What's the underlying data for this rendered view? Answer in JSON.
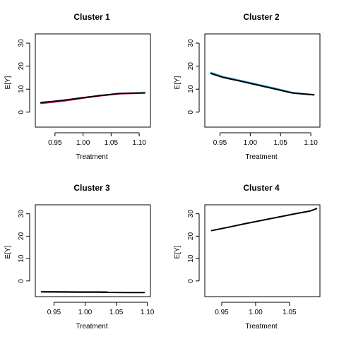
{
  "chart_data": [
    {
      "type": "line",
      "title": "Cluster 1",
      "xlabel": "Treatment",
      "ylabel": "E[Y]",
      "xlim": [
        0.915,
        1.12
      ],
      "ylim": [
        -6.5,
        34
      ],
      "xticks": [
        0.95,
        1.0,
        1.05,
        1.1
      ],
      "xtick_labels": [
        "0.95",
        "1.00",
        "1.05",
        "1.10"
      ],
      "yticks": [
        0,
        10,
        20,
        30
      ],
      "ytick_labels": [
        "0",
        "10",
        "20",
        "30"
      ],
      "grid": false,
      "series": [
        {
          "color": "#e0007a",
          "x": [
            0.925,
            0.945,
            0.97,
            1.0,
            1.03,
            1.065,
            1.11
          ],
          "y": [
            3.8,
            4.3,
            5.0,
            6.1,
            7.1,
            8.0,
            8.3
          ]
        },
        {
          "color": "#000000",
          "x": [
            0.925,
            0.945,
            0.97,
            1.0,
            1.03,
            1.065,
            1.11
          ],
          "y": [
            4.2,
            4.6,
            5.3,
            6.3,
            7.2,
            8.1,
            8.4
          ]
        }
      ]
    },
    {
      "type": "line",
      "title": "Cluster 2",
      "xlabel": "Treatment",
      "ylabel": "E[Y]",
      "xlim": [
        0.925,
        1.115
      ],
      "ylim": [
        -6.5,
        34
      ],
      "xticks": [
        0.95,
        1.0,
        1.05,
        1.1
      ],
      "xtick_labels": [
        "0.95",
        "1.00",
        "1.05",
        "1.10"
      ],
      "yticks": [
        0,
        10,
        20,
        30
      ],
      "ytick_labels": [
        "0",
        "10",
        "20",
        "30"
      ],
      "grid": false,
      "series": [
        {
          "color": "#2a9fd6",
          "x": [
            0.935,
            0.955,
            0.98,
            1.01,
            1.04,
            1.07,
            1.105
          ],
          "y": [
            17.2,
            15.4,
            14.0,
            12.2,
            10.4,
            8.5,
            7.6
          ]
        },
        {
          "color": "#000000",
          "x": [
            0.935,
            0.955,
            0.98,
            1.01,
            1.04,
            1.07,
            1.105
          ],
          "y": [
            16.8,
            15.1,
            13.7,
            11.9,
            10.1,
            8.3,
            7.5
          ]
        }
      ]
    },
    {
      "type": "line",
      "title": "Cluster 3",
      "xlabel": "Treatment",
      "ylabel": "E[Y]",
      "xlim": [
        0.92,
        1.105
      ],
      "ylim": [
        -7,
        34
      ],
      "xticks": [
        0.95,
        1.0,
        1.05,
        1.1
      ],
      "xtick_labels": [
        "0.95",
        "1.00",
        "1.05",
        "1.10"
      ],
      "yticks": [
        0,
        10,
        20,
        30
      ],
      "ytick_labels": [
        "0",
        "10",
        "20",
        "30"
      ],
      "grid": false,
      "series": [
        {
          "color": "#2e8b2e",
          "x": [
            0.93,
            0.96,
            0.99,
            1.01,
            1.035
          ],
          "y": [
            -4.8,
            -4.8,
            -4.85,
            -4.9,
            -4.9
          ]
        },
        {
          "color": "#000000",
          "x": [
            0.93,
            0.96,
            0.99,
            1.02,
            1.05,
            1.07,
            1.095
          ],
          "y": [
            -4.9,
            -4.95,
            -5.0,
            -5.05,
            -5.15,
            -5.2,
            -5.2
          ]
        }
      ]
    },
    {
      "type": "line",
      "title": "Cluster 4",
      "xlabel": "Treatment",
      "ylabel": "E[Y]",
      "xlim": [
        0.925,
        1.095
      ],
      "ylim": [
        -7,
        34
      ],
      "xticks": [
        0.95,
        1.0,
        1.05
      ],
      "xtick_labels": [
        "0.95",
        "1.00",
        "1.05"
      ],
      "yticks": [
        0,
        10,
        20,
        30
      ],
      "ytick_labels": [
        "0",
        "10",
        "20",
        "30"
      ],
      "grid": false,
      "series": [
        {
          "color": "#000000",
          "x": [
            0.935,
            0.96,
            0.985,
            1.01,
            1.035,
            1.06,
            1.08,
            1.09
          ],
          "y": [
            22.5,
            24.0,
            25.6,
            27.1,
            28.6,
            30.1,
            31.2,
            32.3
          ]
        }
      ]
    }
  ]
}
